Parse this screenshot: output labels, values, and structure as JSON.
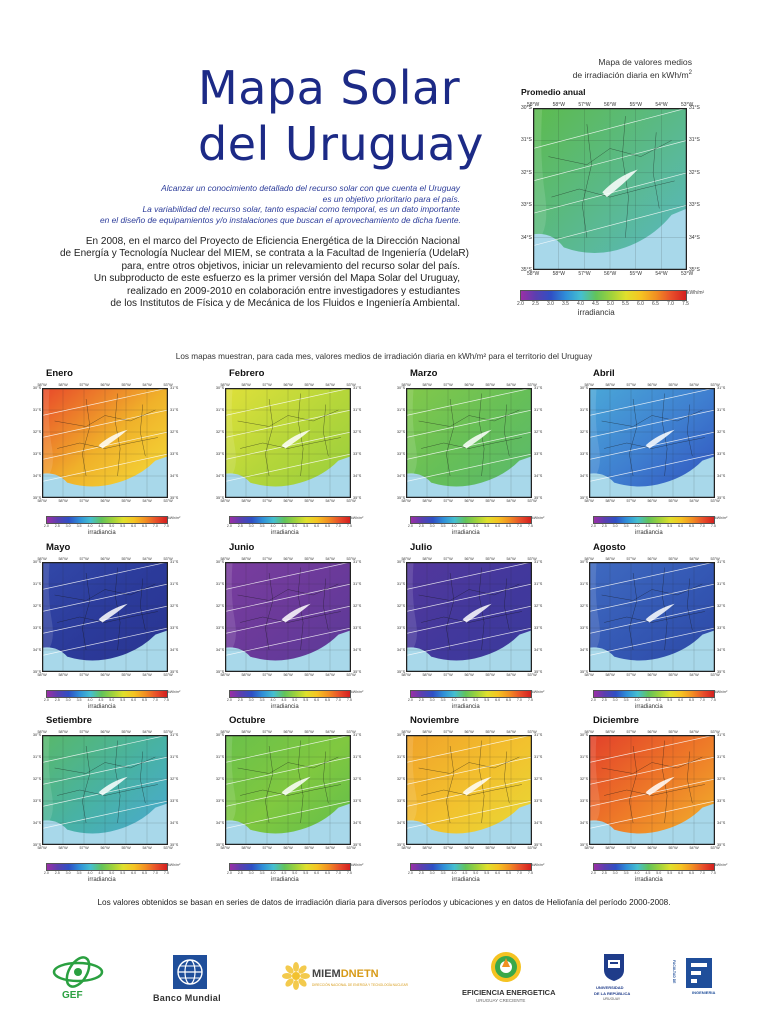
{
  "title": {
    "line1": "Mapa Solar",
    "line2": "del Uruguay"
  },
  "intro_italic": [
    "Alcanzar un conocimiento detallado del recurso solar con que cuenta el Uruguay",
    "es un objetivo prioritario para el país.",
    "La variabilidad del recurso solar, tanto espacial como temporal, es un dato importante",
    "en el diseño de equipamientos y/o instalaciones que buscan el aprovechamiento de dicha fuente."
  ],
  "body_text": [
    "En 2008, en el marco del Proyecto de Eficiencia Energética de la Dirección Nacional",
    "de Energía y Tecnología Nuclear del MIEM, se contrata a la Facultad de Ingeniería (UdelaR)",
    "para, entre otros objetivos, iniciar un relevamiento del recurso solar del país.",
    "Un subproducto de este esfuerzo es la primer versión del Mapa Solar del Uruguay,",
    "realizado en 2009-2010 en colaboración entre investigadores y estudiantes",
    "de los Institutos de Física y de Mecánica de los Fluidos e Ingeniería Ambiental."
  ],
  "annual": {
    "label_line1": "Mapa de valores medios",
    "label_line2": "de irradiación diaria en kWh/m",
    "label_sup": "2",
    "title": "Promedio anual",
    "cbar_unit": "kWh/m²",
    "cbar_title": "irradiancia"
  },
  "axes": {
    "lon": [
      "58°W",
      "58°W",
      "57°W",
      "56°W",
      "55°W",
      "54°W",
      "53°W"
    ],
    "lat_left": [
      "30°S",
      "31°S",
      "32°S",
      "33°S",
      "34°S",
      "35°S"
    ],
    "lat_right": [
      "31°S",
      "31°S",
      "32°S",
      "33°S",
      "34°S",
      "35°S"
    ]
  },
  "colorbar_ticks": [
    "2.0",
    "2.5",
    "3.0",
    "3.5",
    "4.0",
    "4.5",
    "5.0",
    "5.5",
    "6.0",
    "6.5",
    "7.0",
    "7.5"
  ],
  "monthly_caption": "Los mapas muestran, para cada mes,  valores medios de irradiación diaria en kWh/m² para el territorio del Uruguay",
  "months": [
    {
      "name": "Enero",
      "colors": [
        "#e8482a",
        "#f0b12a",
        "#f4e23a"
      ],
      "unit": "kWh/m²",
      "cbar_title": "irradiancia"
    },
    {
      "name": "Febrero",
      "colors": [
        "#dfe03a",
        "#b5d63a",
        "#93cd3e"
      ],
      "unit": "kWh/m²",
      "cbar_title": "irradiancia"
    },
    {
      "name": "Marzo",
      "colors": [
        "#82c84a",
        "#66bf58",
        "#58b870"
      ],
      "unit": "kWh/m²",
      "cbar_title": "irradiancia"
    },
    {
      "name": "Abril",
      "colors": [
        "#4aa7d8",
        "#3f7fd0",
        "#2f4fbd"
      ],
      "unit": "kWh/m²",
      "cbar_title": "irradiancia"
    },
    {
      "name": "Mayo",
      "colors": [
        "#3248a8",
        "#2b3a9a",
        "#2a3490"
      ],
      "unit": "kWh/m²",
      "cbar_title": "irradiancia"
    },
    {
      "name": "Junio",
      "colors": [
        "#7a3d9e",
        "#6a3a9a",
        "#593a98"
      ],
      "unit": "kWh/m²",
      "cbar_title": "irradiancia"
    },
    {
      "name": "Julio",
      "colors": [
        "#54379c",
        "#42389c",
        "#3a3a9c"
      ],
      "unit": "kWh/m²",
      "cbar_title": "irradiancia"
    },
    {
      "name": "Agosto",
      "colors": [
        "#3f6ac0",
        "#3458b4",
        "#2c46a4"
      ],
      "unit": "kWh/m²",
      "cbar_title": "irradiancia"
    },
    {
      "name": "Setiembre",
      "colors": [
        "#58b86a",
        "#48b2a4",
        "#4aa8d8"
      ],
      "unit": "kWh/m²",
      "cbar_title": "irradiancia"
    },
    {
      "name": "Octubre",
      "colors": [
        "#6ac04a",
        "#80c840",
        "#5fbd4c"
      ],
      "unit": "kWh/m²",
      "cbar_title": "irradiancia"
    },
    {
      "name": "Noviembre",
      "colors": [
        "#f0a22a",
        "#f2c12e",
        "#e6dc36"
      ],
      "unit": "kWh/m²",
      "cbar_title": "irradiancia"
    },
    {
      "name": "Diciembre",
      "colors": [
        "#e2402a",
        "#ee7a28",
        "#f2b82c"
      ],
      "unit": "kWh/m²",
      "cbar_title": "irradiancia"
    }
  ],
  "footnote": "Los valores obtenidos se basan en series de datos de irradiación diaria para diversos períodos y ubicaciones y en datos de Heliofanía del período 2000-2008.",
  "logos": {
    "gef": "GEF",
    "banco_mundial": "Banco Mundial",
    "miem": "MIEM",
    "dnetn": "DNETN",
    "miem_sub": "DIRECCIÓN NACIONAL DE ENERGÍA Y TECNOLOGÍA NUCLEAR",
    "eficiencia": "EFICIENCIA ENERGETICA",
    "eficiencia_sub": "URUGUAY CRECIENTE",
    "udelar_1": "UNIVERSIDAD",
    "udelar_2": "DE LA REPÚBLICA",
    "udelar_3": "URUGUAY",
    "facultad_1": "FACULTAD DE",
    "facultad_2": "INGENIERIA"
  },
  "colors": {
    "title_blue": "#1c2a86",
    "italic_blue": "#2c3c9a",
    "gef_green": "#2aa040",
    "wb_blue": "#1f4e9a"
  }
}
